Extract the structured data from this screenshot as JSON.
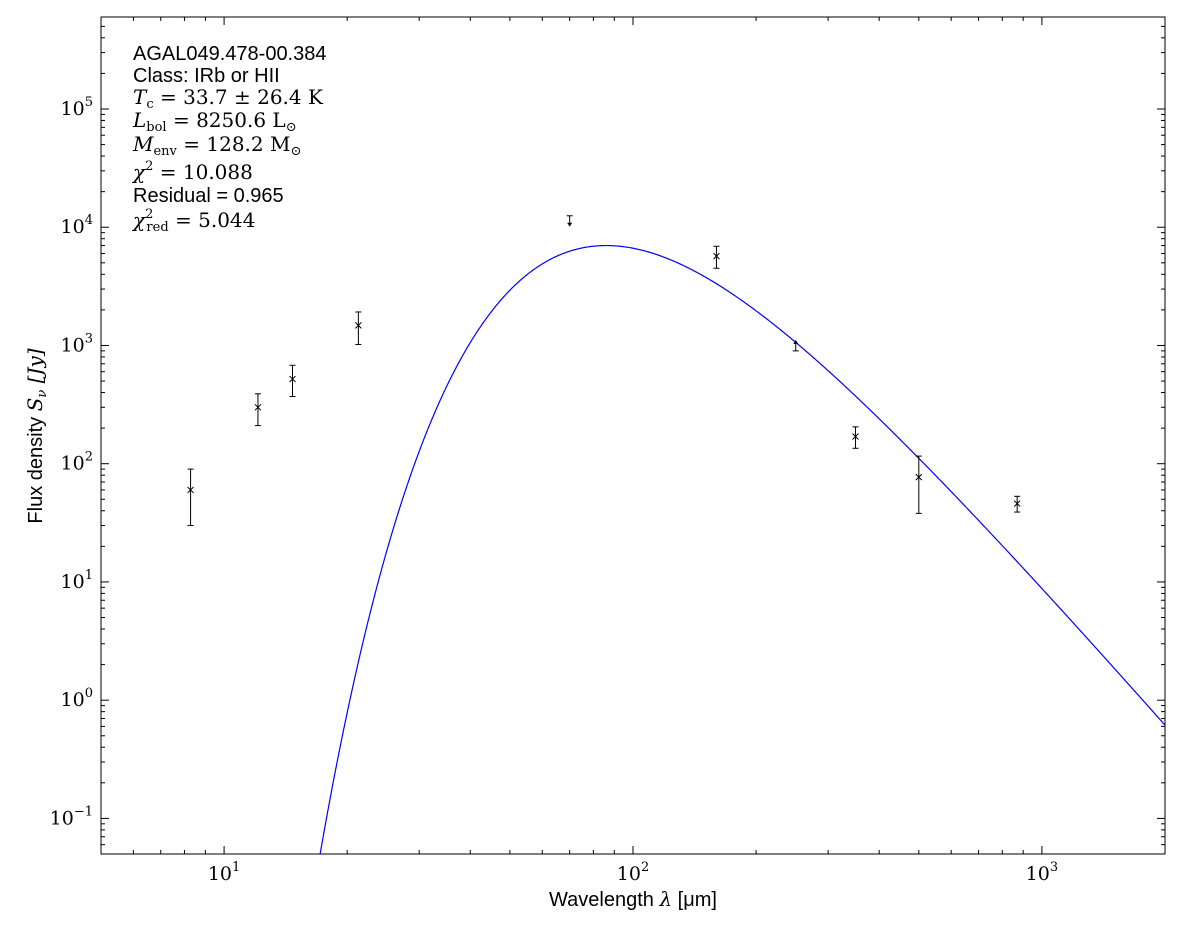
{
  "chart_data": {
    "type": "scatter",
    "x_scale": "log",
    "y_scale": "log",
    "xlim": [
      5,
      2000
    ],
    "ylim": [
      0.05,
      600000
    ],
    "grid": false,
    "xlabel_prefix": "Wavelength ",
    "xlabel_symbol": "λ",
    "xlabel_unit": " [μm]",
    "ylabel_prefix": "Flux density ",
    "ylabel_symbol": "S",
    "ylabel_sub": "ν",
    "ylabel_unit": " [Jy]",
    "x_ticks": [
      {
        "value": 10,
        "mantissa": "10",
        "exp": "1"
      },
      {
        "value": 100,
        "mantissa": "10",
        "exp": "2"
      },
      {
        "value": 1000,
        "mantissa": "10",
        "exp": "3"
      }
    ],
    "y_ticks": [
      {
        "value": 0.1,
        "mantissa": "10",
        "exp": "−1"
      },
      {
        "value": 1,
        "mantissa": "10",
        "exp": "0"
      },
      {
        "value": 10,
        "mantissa": "10",
        "exp": "1"
      },
      {
        "value": 100,
        "mantissa": "10",
        "exp": "2"
      },
      {
        "value": 1000,
        "mantissa": "10",
        "exp": "3"
      },
      {
        "value": 10000,
        "mantissa": "10",
        "exp": "4"
      },
      {
        "value": 100000,
        "mantissa": "10",
        "exp": "5"
      }
    ],
    "points": [
      {
        "x": 8.28,
        "y": 60,
        "yerr_low": 30,
        "yerr_high": 90,
        "kind": "measurement"
      },
      {
        "x": 12.1,
        "y": 300,
        "yerr_low": 210,
        "yerr_high": 390,
        "kind": "measurement"
      },
      {
        "x": 14.7,
        "y": 520,
        "yerr_low": 370,
        "yerr_high": 680,
        "kind": "measurement"
      },
      {
        "x": 21.3,
        "y": 1480,
        "yerr_low": 1020,
        "yerr_high": 1920,
        "kind": "measurement"
      },
      {
        "x": 70,
        "y": 12500,
        "kind": "upper_limit"
      },
      {
        "x": 160,
        "y": 5700,
        "yerr_low": 4500,
        "yerr_high": 6900,
        "kind": "measurement"
      },
      {
        "x": 250,
        "y": 900,
        "kind": "lower_limit"
      },
      {
        "x": 350,
        "y": 170,
        "yerr_low": 135,
        "yerr_high": 205,
        "kind": "measurement"
      },
      {
        "x": 500,
        "y": 77,
        "yerr_low": 38,
        "yerr_high": 116,
        "kind": "measurement"
      },
      {
        "x": 870,
        "y": 46,
        "yerr_low": 39,
        "yerr_high": 53,
        "kind": "measurement"
      }
    ],
    "model_curve": {
      "color": "#0000ff",
      "description_values": {
        "T_c": 33.7,
        "peak_flux_jy": 7000,
        "peak_wavelength_um": 92
      }
    },
    "marker_color": "#000000"
  },
  "annotations": {
    "source_name": "AGAL049.478-00.384",
    "class_line": "Class: IRb or HII",
    "tc_symbol": "T",
    "tc_sub": "c",
    "tc_value": " = 33.7 ± 26.4 K",
    "lbol_symbol": "L",
    "lbol_sub": "bol",
    "lbol_value": " = 8250.6 L",
    "lbol_unit_sub": "⊙",
    "menv_symbol": "M",
    "menv_sub": "env",
    "menv_value": " = 128.2 M",
    "menv_unit_sub": "⊙",
    "chi2_symbol": "χ",
    "chi2_sup": "2",
    "chi2_value": " = 10.088",
    "residual_line": "Residual = 0.965",
    "chi2red_symbol": "χ",
    "chi2red_sup": "2",
    "chi2red_sub": "red",
    "chi2red_value": " = 5.044"
  }
}
